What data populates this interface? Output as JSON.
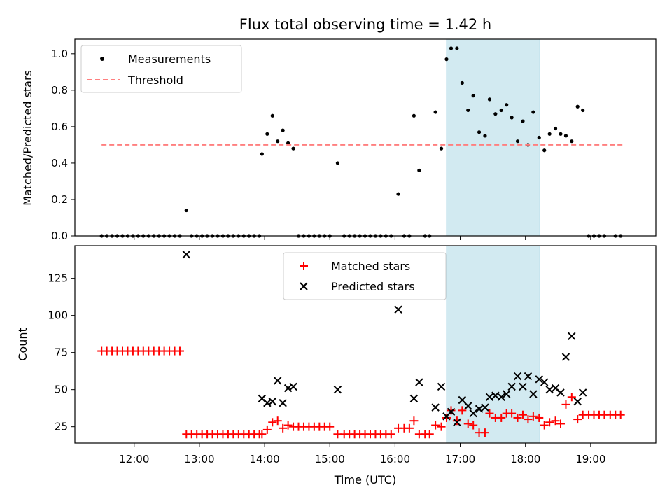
{
  "figure_title": "Flux total observing time = 1.42 h",
  "chart_data": [
    {
      "type": "scatter",
      "ylabel": "Matched/Predicted stars",
      "xlabel": "",
      "xlim": [
        11.09,
        20.0
      ],
      "ylim": [
        0,
        1.08
      ],
      "xticks": [],
      "yticks": [
        "0.0",
        "0.2",
        "0.4",
        "0.6",
        "0.8",
        "1.0"
      ],
      "shaded_interval": [
        16.79,
        18.22
      ],
      "shade_color": "#add8e6",
      "legend": {
        "placement": "upper left",
        "entries": [
          "Measurements",
          "Threshold"
        ]
      },
      "series": [
        {
          "name": "Measurements",
          "marker": "dot",
          "color": "#000000",
          "points": [
            [
              11.5,
              0
            ],
            [
              11.58,
              0
            ],
            [
              11.66,
              0
            ],
            [
              11.74,
              0
            ],
            [
              11.82,
              0
            ],
            [
              11.9,
              0
            ],
            [
              11.98,
              0
            ],
            [
              12.06,
              0
            ],
            [
              12.14,
              0
            ],
            [
              12.22,
              0
            ],
            [
              12.3,
              0
            ],
            [
              12.38,
              0
            ],
            [
              12.46,
              0
            ],
            [
              12.54,
              0
            ],
            [
              12.62,
              0
            ],
            [
              12.7,
              0
            ],
            [
              12.8,
              0.14
            ],
            [
              12.88,
              0
            ],
            [
              12.96,
              0
            ],
            [
              13.04,
              0
            ],
            [
              13.12,
              0
            ],
            [
              13.2,
              0
            ],
            [
              13.28,
              0
            ],
            [
              13.36,
              0
            ],
            [
              13.44,
              0
            ],
            [
              13.52,
              0
            ],
            [
              13.6,
              0
            ],
            [
              13.68,
              0
            ],
            [
              13.76,
              0
            ],
            [
              13.84,
              0
            ],
            [
              13.92,
              0
            ],
            [
              13.96,
              0.45
            ],
            [
              14.04,
              0.56
            ],
            [
              14.12,
              0.66
            ],
            [
              14.2,
              0.52
            ],
            [
              14.28,
              0.58
            ],
            [
              14.36,
              0.51
            ],
            [
              14.44,
              0.48
            ],
            [
              14.52,
              0
            ],
            [
              14.6,
              0
            ],
            [
              14.68,
              0
            ],
            [
              14.76,
              0
            ],
            [
              14.84,
              0
            ],
            [
              14.92,
              0
            ],
            [
              15.0,
              0
            ],
            [
              15.12,
              0.4
            ],
            [
              15.22,
              0
            ],
            [
              15.3,
              0
            ],
            [
              15.38,
              0
            ],
            [
              15.46,
              0
            ],
            [
              15.54,
              0
            ],
            [
              15.62,
              0
            ],
            [
              15.7,
              0
            ],
            [
              15.78,
              0
            ],
            [
              15.86,
              0
            ],
            [
              15.94,
              0
            ],
            [
              16.05,
              0.23
            ],
            [
              16.14,
              0
            ],
            [
              16.22,
              0
            ],
            [
              16.29,
              0.66
            ],
            [
              16.37,
              0.36
            ],
            [
              16.46,
              0
            ],
            [
              16.53,
              0
            ],
            [
              16.62,
              0.68
            ],
            [
              16.71,
              0.48
            ],
            [
              16.79,
              0.97
            ],
            [
              16.86,
              1.03
            ],
            [
              16.95,
              1.03
            ],
            [
              17.03,
              0.84
            ],
            [
              17.12,
              0.69
            ],
            [
              17.2,
              0.77
            ],
            [
              17.29,
              0.57
            ],
            [
              17.38,
              0.55
            ],
            [
              17.45,
              0.75
            ],
            [
              17.54,
              0.67
            ],
            [
              17.63,
              0.69
            ],
            [
              17.71,
              0.72
            ],
            [
              17.79,
              0.65
            ],
            [
              17.88,
              0.52
            ],
            [
              17.96,
              0.63
            ],
            [
              18.04,
              0.5
            ],
            [
              18.12,
              0.68
            ],
            [
              18.21,
              0.54
            ],
            [
              18.29,
              0.47
            ],
            [
              18.37,
              0.56
            ],
            [
              18.46,
              0.59
            ],
            [
              18.54,
              0.56
            ],
            [
              18.62,
              0.55
            ],
            [
              18.71,
              0.52
            ],
            [
              18.8,
              0.71
            ],
            [
              18.88,
              0.69
            ],
            [
              18.97,
              0
            ],
            [
              19.05,
              0
            ],
            [
              19.13,
              0
            ],
            [
              19.21,
              0
            ],
            [
              19.38,
              0
            ],
            [
              19.46,
              0
            ]
          ]
        },
        {
          "name": "Threshold",
          "marker": "dashed-line",
          "color": "#ff7f7f",
          "points": [
            [
              11.5,
              0.5
            ],
            [
              19.5,
              0.5
            ]
          ]
        }
      ]
    },
    {
      "type": "scatter",
      "ylabel": "Count",
      "xlabel": "Time (UTC)",
      "xlim": [
        11.09,
        20.0
      ],
      "ylim": [
        14,
        147
      ],
      "xticks": [
        "12:00",
        "13:00",
        "14:00",
        "15:00",
        "16:00",
        "17:00",
        "18:00",
        "19:00"
      ],
      "xtick_values": [
        12,
        13,
        14,
        15,
        16,
        17,
        18,
        19
      ],
      "yticks": [
        "25",
        "50",
        "75",
        "100",
        "125"
      ],
      "ytick_values": [
        25,
        50,
        75,
        100,
        125
      ],
      "shaded_interval": [
        16.79,
        18.22
      ],
      "shade_color": "#add8e6",
      "legend": {
        "placement": "upper center",
        "entries": [
          "Matched stars",
          "Predicted stars"
        ]
      },
      "series": [
        {
          "name": "Matched stars",
          "marker": "plus",
          "color": "#ff0000",
          "points": [
            [
              11.5,
              76
            ],
            [
              11.58,
              76
            ],
            [
              11.66,
              76
            ],
            [
              11.74,
              76
            ],
            [
              11.82,
              76
            ],
            [
              11.9,
              76
            ],
            [
              11.98,
              76
            ],
            [
              12.06,
              76
            ],
            [
              12.14,
              76
            ],
            [
              12.22,
              76
            ],
            [
              12.3,
              76
            ],
            [
              12.38,
              76
            ],
            [
              12.46,
              76
            ],
            [
              12.54,
              76
            ],
            [
              12.62,
              76
            ],
            [
              12.7,
              76
            ],
            [
              12.8,
              20
            ],
            [
              12.88,
              20
            ],
            [
              12.96,
              20
            ],
            [
              13.04,
              20
            ],
            [
              13.12,
              20
            ],
            [
              13.2,
              20
            ],
            [
              13.28,
              20
            ],
            [
              13.36,
              20
            ],
            [
              13.44,
              20
            ],
            [
              13.52,
              20
            ],
            [
              13.6,
              20
            ],
            [
              13.68,
              20
            ],
            [
              13.76,
              20
            ],
            [
              13.84,
              20
            ],
            [
              13.92,
              20
            ],
            [
              13.96,
              20
            ],
            [
              14.04,
              23
            ],
            [
              14.12,
              28
            ],
            [
              14.2,
              29
            ],
            [
              14.28,
              24
            ],
            [
              14.36,
              26
            ],
            [
              14.44,
              25
            ],
            [
              14.52,
              25
            ],
            [
              14.6,
              25
            ],
            [
              14.68,
              25
            ],
            [
              14.76,
              25
            ],
            [
              14.84,
              25
            ],
            [
              14.92,
              25
            ],
            [
              15.0,
              25
            ],
            [
              15.12,
              20
            ],
            [
              15.22,
              20
            ],
            [
              15.3,
              20
            ],
            [
              15.38,
              20
            ],
            [
              15.46,
              20
            ],
            [
              15.54,
              20
            ],
            [
              15.62,
              20
            ],
            [
              15.7,
              20
            ],
            [
              15.78,
              20
            ],
            [
              15.86,
              20
            ],
            [
              15.94,
              20
            ],
            [
              16.05,
              24
            ],
            [
              16.14,
              24
            ],
            [
              16.22,
              24
            ],
            [
              16.29,
              29
            ],
            [
              16.37,
              20
            ],
            [
              16.46,
              20
            ],
            [
              16.53,
              20
            ],
            [
              16.62,
              26
            ],
            [
              16.71,
              25
            ],
            [
              16.79,
              31
            ],
            [
              16.86,
              36
            ],
            [
              16.95,
              29
            ],
            [
              17.03,
              36
            ],
            [
              17.12,
              27
            ],
            [
              17.2,
              26
            ],
            [
              17.29,
              21
            ],
            [
              17.38,
              21
            ],
            [
              17.45,
              34
            ],
            [
              17.54,
              31
            ],
            [
              17.63,
              31
            ],
            [
              17.71,
              34
            ],
            [
              17.79,
              34
            ],
            [
              17.88,
              31
            ],
            [
              17.96,
              33
            ],
            [
              18.04,
              30
            ],
            [
              18.12,
              32
            ],
            [
              18.21,
              31
            ],
            [
              18.29,
              26
            ],
            [
              18.37,
              28
            ],
            [
              18.46,
              29
            ],
            [
              18.54,
              27
            ],
            [
              18.62,
              40
            ],
            [
              18.71,
              45
            ],
            [
              18.8,
              30
            ],
            [
              18.88,
              33
            ],
            [
              18.97,
              33
            ],
            [
              19.05,
              33
            ],
            [
              19.13,
              33
            ],
            [
              19.21,
              33
            ],
            [
              19.3,
              33
            ],
            [
              19.38,
              33
            ],
            [
              19.46,
              33
            ]
          ]
        },
        {
          "name": "Predicted stars",
          "marker": "x",
          "color": "#000000",
          "points": [
            [
              12.8,
              141
            ],
            [
              13.96,
              44
            ],
            [
              14.04,
              41
            ],
            [
              14.12,
              42
            ],
            [
              14.2,
              56
            ],
            [
              14.28,
              41
            ],
            [
              14.36,
              51
            ],
            [
              14.44,
              52
            ],
            [
              15.12,
              50
            ],
            [
              16.05,
              104
            ],
            [
              16.29,
              44
            ],
            [
              16.37,
              55
            ],
            [
              16.62,
              38
            ],
            [
              16.71,
              52
            ],
            [
              16.79,
              32
            ],
            [
              16.86,
              35
            ],
            [
              16.95,
              28
            ],
            [
              17.03,
              43
            ],
            [
              17.12,
              39
            ],
            [
              17.2,
              34
            ],
            [
              17.29,
              37
            ],
            [
              17.38,
              38
            ],
            [
              17.45,
              45
            ],
            [
              17.54,
              46
            ],
            [
              17.63,
              45
            ],
            [
              17.71,
              47
            ],
            [
              17.79,
              52
            ],
            [
              17.88,
              59
            ],
            [
              17.96,
              52
            ],
            [
              18.04,
              59
            ],
            [
              18.12,
              47
            ],
            [
              18.21,
              57
            ],
            [
              18.29,
              55
            ],
            [
              18.37,
              50
            ],
            [
              18.46,
              51
            ],
            [
              18.54,
              48
            ],
            [
              18.62,
              72
            ],
            [
              18.71,
              86
            ],
            [
              18.8,
              42
            ],
            [
              18.88,
              48
            ]
          ]
        }
      ]
    }
  ]
}
